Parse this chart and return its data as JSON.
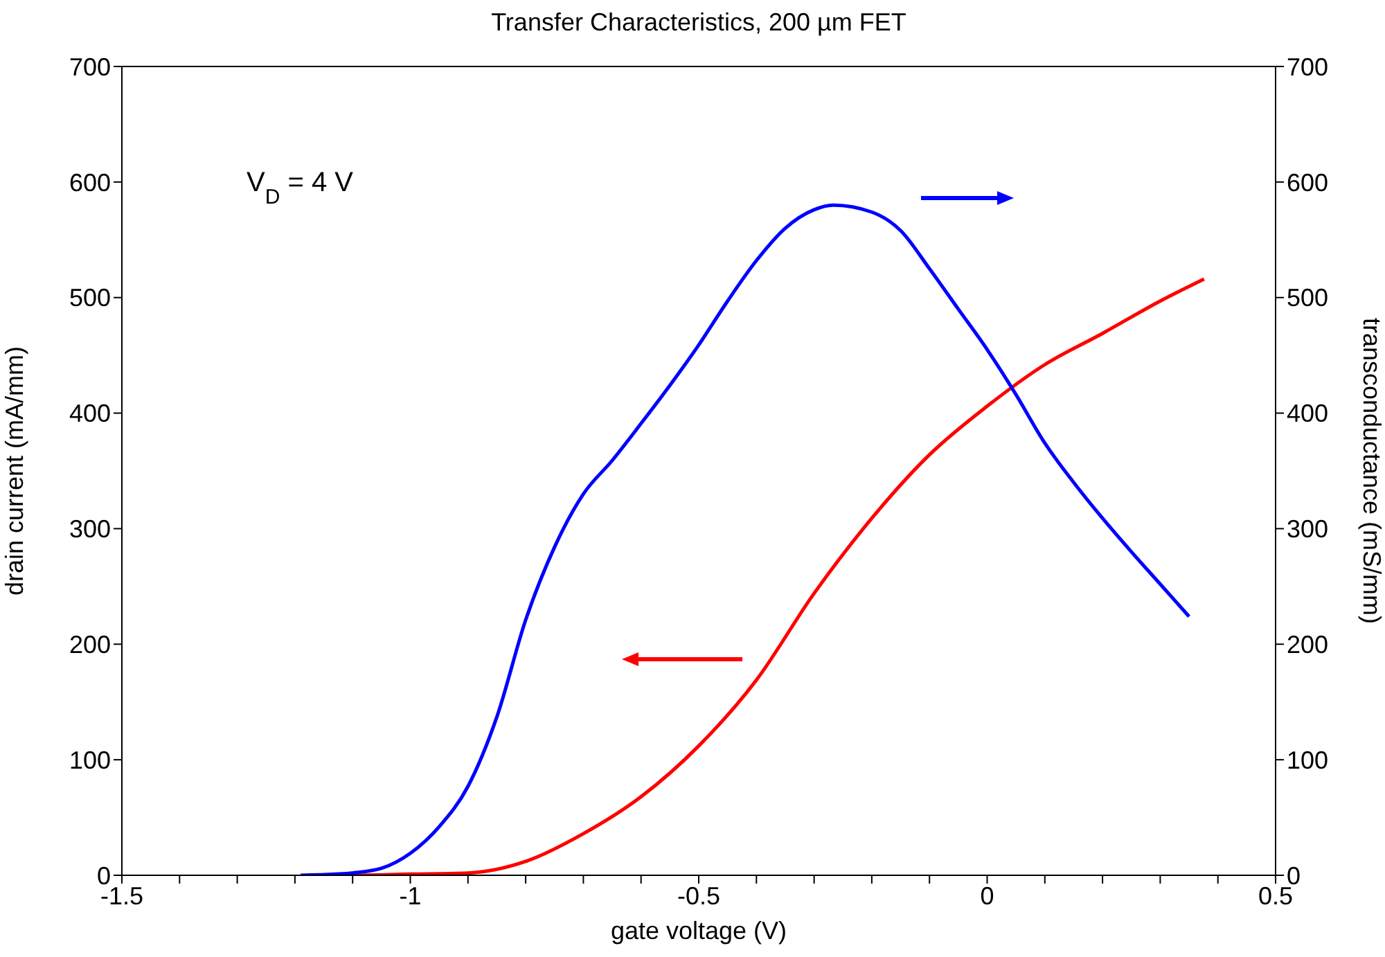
{
  "chart_data": {
    "type": "line",
    "title": "Transfer Characteristics, 200 µm FET",
    "xlabel": "gate voltage (V)",
    "ylabel": "drain current (mA/mm)",
    "y2label": "transconductance (mS/mm)",
    "annotations": [
      "V$_{D}$ = 4 V"
    ],
    "xlim": [
      -1.5,
      0.5
    ],
    "xticks": [
      -1.5,
      {
        "value": -1.4,
        "label": null
      },
      {
        "value": -1.3,
        "label": null
      },
      {
        "value": -1.2,
        "label": null
      },
      {
        "value": -1.1,
        "label": null
      },
      -1,
      {
        "value": -0.9,
        "label": null
      },
      {
        "value": -0.8,
        "label": null
      },
      {
        "value": -0.7,
        "label": null
      },
      {
        "value": -0.6,
        "label": null
      },
      -0.5,
      {
        "value": -0.4,
        "label": null
      },
      {
        "value": -0.3,
        "label": null
      },
      {
        "value": -0.2,
        "label": null
      },
      {
        "value": -0.1,
        "label": null
      },
      0,
      {
        "value": 0.1,
        "label": null
      },
      {
        "value": 0.2,
        "label": null
      },
      {
        "value": 0.3,
        "label": null
      },
      {
        "value": 0.4,
        "label": null
      },
      0.5
    ],
    "ylim": [
      0,
      700
    ],
    "yticks": [
      0,
      100,
      200,
      300,
      400,
      500,
      600,
      700
    ],
    "y2lim": [
      0,
      700
    ],
    "y2ticks": [
      0,
      100,
      200,
      300,
      400,
      500,
      600,
      700
    ],
    "marker": "none",
    "line_style": "solid",
    "series": [
      {
        "color": "#ff0000",
        "x": [
          -1.175,
          -1.1,
          -1.0,
          -0.9,
          -0.8,
          -0.7,
          -0.6,
          -0.5,
          -0.4,
          -0.3,
          -0.2,
          -0.1,
          0,
          0.1,
          0.2,
          0.3,
          0.376
        ],
        "values": [
          0,
          0,
          1,
          2,
          12,
          36,
          68,
          112,
          169,
          244,
          309,
          364,
          406,
          442,
          469,
          497,
          516
        ]
      },
      {
        "color": "#0000ff",
        "axis": "y2",
        "x": [
          -1.19,
          -1.13,
          -1.1,
          -1.05,
          -1.0,
          -0.95,
          -0.9,
          -0.85,
          -0.8,
          -0.75,
          -0.7,
          -0.65,
          -0.6,
          -0.55,
          -0.5,
          -0.45,
          -0.4,
          -0.35,
          -0.3,
          -0.267,
          -0.2,
          -0.15,
          -0.1,
          -0.05,
          0,
          0.05,
          0.1,
          0.15,
          0.2,
          0.25,
          0.3,
          0.35
        ],
        "values": [
          0,
          1,
          2,
          6,
          19,
          42,
          77,
          137,
          221,
          284,
          330,
          359,
          391,
          424,
          459,
          497,
          532,
          560,
          576,
          580,
          574,
          558,
          525,
          490,
          455,
          416,
          374,
          340,
          309,
          280,
          252,
          224
        ]
      }
    ]
  }
}
